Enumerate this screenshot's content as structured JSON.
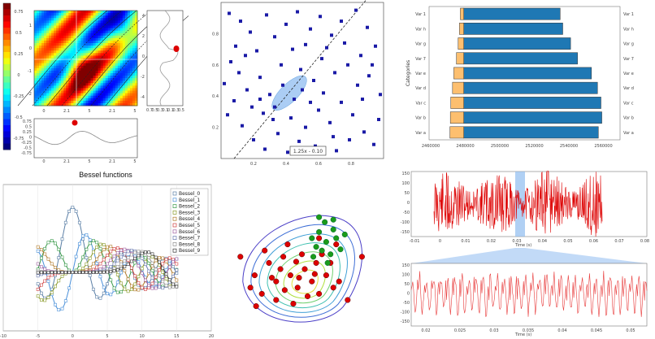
{
  "colors": {
    "orange": "#fdbf6f",
    "blue": "#1f78b4",
    "navy": "#1a1aa6",
    "red": "#dd0000",
    "green": "#1a9b1a",
    "selection": "#8fbcf0"
  },
  "chart_data": [
    {
      "id": "contour",
      "type": "heatmap",
      "colorbar_ticks": [
        "0.75",
        "0.5",
        "0.25",
        "0",
        "-0.25",
        "-0.5",
        "-0.75"
      ],
      "x_ticks": [
        "0",
        "2.1",
        "5",
        "2.1",
        "5"
      ],
      "y_ticks": [
        "1",
        "0",
        "-1",
        "-2"
      ],
      "right_profile_yticks": [
        "4",
        "2",
        "0",
        "-2",
        "-4"
      ],
      "right_profile_xticks": [
        "0.7",
        "0.5",
        "0.3",
        "0.1",
        "0.1",
        "0.3",
        "0.5"
      ],
      "bottom_profile_yticks": [
        "0.75",
        "0.5",
        "0.25",
        "0",
        "-0.25",
        "-0.5",
        "-0.75"
      ],
      "bottom_profile_xticks": [
        "0",
        "2.1",
        "5",
        "2.1",
        "5"
      ]
    },
    {
      "id": "scatter-fit",
      "type": "scatter",
      "x_ticks": [
        "0.2",
        "0.4",
        "0.6",
        "0.8"
      ],
      "y_ticks": [
        "0.8",
        "0.6",
        "0.4",
        "0.2"
      ],
      "xlim": [
        0,
        1
      ],
      "ylim": [
        0,
        1
      ],
      "fit_label": "1.25x - 0.10",
      "fit_slope": 1.25,
      "fit_intercept": -0.1,
      "points": [
        [
          0.05,
          0.93
        ],
        [
          0.12,
          0.88
        ],
        [
          0.18,
          0.81
        ],
        [
          0.09,
          0.72
        ],
        [
          0.22,
          0.69
        ],
        [
          0.28,
          0.92
        ],
        [
          0.33,
          0.78
        ],
        [
          0.4,
          0.86
        ],
        [
          0.47,
          0.94
        ],
        [
          0.55,
          0.83
        ],
        [
          0.61,
          0.91
        ],
        [
          0.68,
          0.79
        ],
        [
          0.74,
          0.88
        ],
        [
          0.83,
          0.95
        ],
        [
          0.9,
          0.84
        ],
        [
          0.95,
          0.72
        ],
        [
          0.86,
          0.66
        ],
        [
          0.78,
          0.6
        ],
        [
          0.7,
          0.55
        ],
        [
          0.62,
          0.64
        ],
        [
          0.57,
          0.5
        ],
        [
          0.5,
          0.44
        ],
        [
          0.45,
          0.38
        ],
        [
          0.38,
          0.47
        ],
        [
          0.3,
          0.41
        ],
        [
          0.24,
          0.52
        ],
        [
          0.16,
          0.44
        ],
        [
          0.08,
          0.37
        ],
        [
          0.04,
          0.28
        ],
        [
          0.13,
          0.21
        ],
        [
          0.2,
          0.12
        ],
        [
          0.27,
          0.06
        ],
        [
          0.35,
          0.16
        ],
        [
          0.43,
          0.26
        ],
        [
          0.52,
          0.2
        ],
        [
          0.6,
          0.31
        ],
        [
          0.67,
          0.23
        ],
        [
          0.74,
          0.36
        ],
        [
          0.81,
          0.28
        ],
        [
          0.88,
          0.17
        ],
        [
          0.94,
          0.09
        ],
        [
          0.98,
          0.41
        ],
        [
          0.91,
          0.53
        ],
        [
          0.79,
          0.12
        ],
        [
          0.71,
          0.05
        ],
        [
          0.58,
          0.08
        ],
        [
          0.48,
          0.11
        ],
        [
          0.41,
          0.04
        ],
        [
          0.33,
          0.33
        ],
        [
          0.26,
          0.29
        ],
        [
          0.19,
          0.33
        ],
        [
          0.11,
          0.55
        ],
        [
          0.06,
          0.62
        ],
        [
          0.15,
          0.66
        ],
        [
          0.37,
          0.6
        ],
        [
          0.44,
          0.7
        ],
        [
          0.52,
          0.73
        ],
        [
          0.65,
          0.71
        ],
        [
          0.76,
          0.74
        ],
        [
          0.84,
          0.47
        ],
        [
          0.93,
          0.6
        ],
        [
          0.97,
          0.25
        ],
        [
          0.63,
          0.42
        ],
        [
          0.55,
          0.36
        ],
        [
          0.32,
          0.25
        ],
        [
          0.24,
          0.38
        ],
        [
          0.02,
          0.48
        ],
        [
          0.87,
          0.38
        ],
        [
          0.69,
          0.14
        ],
        [
          0.49,
          0.57
        ]
      ]
    },
    {
      "id": "pyramid",
      "type": "bar",
      "ylabel": "Categories",
      "categories": [
        "Var a",
        "Var b",
        "Var c",
        "Var d",
        "Var e",
        "Var 7",
        "Var g",
        "Var h",
        "Var 1"
      ],
      "left_values": [
        2484000,
        2484500,
        2485000,
        2487000,
        2488500,
        2491500,
        2493500,
        2495000,
        2496000
      ],
      "right_values": [
        2655000,
        2659000,
        2658000,
        2654000,
        2647000,
        2631000,
        2623000,
        2614000,
        2611000
      ],
      "baseline": 2500000,
      "xlim": [
        2460000,
        2680000
      ],
      "x_ticks": [
        "2460000",
        "2480000",
        "2500000",
        "2520000",
        "2540000",
        "2560000"
      ],
      "left_labels": [
        "Var a",
        "Var b",
        "Var c",
        "Var d",
        "Var e",
        "Var 7",
        "Var g",
        "Var h",
        "Var 1"
      ],
      "right_labels": [
        "Var a",
        "Var b",
        "Var c",
        "Var d",
        "Var e",
        "Var 7",
        "Var g",
        "Var h",
        "Var 1"
      ]
    },
    {
      "id": "bessel",
      "type": "line",
      "title": "Bessel functions",
      "xlim": [
        -10,
        20
      ],
      "x_ticks": [
        "-10",
        "-5",
        "0",
        "5",
        "10",
        "15",
        "20"
      ],
      "series": [
        "Bessel_0",
        "Bessel_1",
        "Bessel_2",
        "Bessel_3",
        "Bessel_4",
        "Bessel_5",
        "Bessel_6",
        "Bessel_7",
        "Bessel_8",
        "Bessel_9"
      ],
      "series_colors": [
        "#5b7fa6",
        "#4a90d9",
        "#3a9a4a",
        "#8a9a2a",
        "#b07a2a",
        "#d04040",
        "#a060a0",
        "#6a7ab0",
        "#909090",
        "#333333"
      ]
    },
    {
      "id": "density",
      "type": "scatter",
      "red_points": [
        [
          0.2,
          0.3
        ],
        [
          0.3,
          0.4
        ],
        [
          0.25,
          0.55
        ],
        [
          0.35,
          0.6
        ],
        [
          0.4,
          0.45
        ],
        [
          0.45,
          0.35
        ],
        [
          0.5,
          0.5
        ],
        [
          0.55,
          0.4
        ],
        [
          0.6,
          0.3
        ],
        [
          0.38,
          0.7
        ],
        [
          0.48,
          0.62
        ],
        [
          0.58,
          0.55
        ],
        [
          0.65,
          0.45
        ],
        [
          0.3,
          0.25
        ],
        [
          0.42,
          0.22
        ],
        [
          0.52,
          0.28
        ],
        [
          0.62,
          0.62
        ],
        [
          0.7,
          0.35
        ],
        [
          0.15,
          0.45
        ],
        [
          0.22,
          0.65
        ],
        [
          0.33,
          0.5
        ],
        [
          0.44,
          0.56
        ],
        [
          0.36,
          0.33
        ],
        [
          0.27,
          0.43
        ],
        [
          0.57,
          0.46
        ],
        [
          0.46,
          0.43
        ],
        [
          0.68,
          0.55
        ],
        [
          0.74,
          0.4
        ],
        [
          0.12,
          0.35
        ],
        [
          0.05,
          0.6
        ],
        [
          0.9,
          0.6
        ],
        [
          0.16,
          0.2
        ],
        [
          0.8,
          0.25
        ],
        [
          0.72,
          0.7
        ],
        [
          0.6,
          0.75
        ]
      ],
      "green_points": [
        [
          0.55,
          0.75
        ],
        [
          0.6,
          0.8
        ],
        [
          0.65,
          0.72
        ],
        [
          0.7,
          0.82
        ],
        [
          0.62,
          0.65
        ],
        [
          0.68,
          0.62
        ],
        [
          0.58,
          0.68
        ],
        [
          0.72,
          0.75
        ],
        [
          0.64,
          0.88
        ],
        [
          0.75,
          0.66
        ],
        [
          0.66,
          0.55
        ],
        [
          0.56,
          0.6
        ],
        [
          0.7,
          0.9
        ],
        [
          0.6,
          0.92
        ],
        [
          0.78,
          0.78
        ]
      ]
    },
    {
      "id": "signal-zoom",
      "type": "line",
      "top_yticks": [
        "150",
        "100",
        "50",
        "0",
        "-50",
        "-100",
        "-150"
      ],
      "top_xticks": [
        "-0.01",
        "0",
        "0.01",
        "0.02",
        "0.03",
        "0.04",
        "0.05",
        "0.06",
        "0.07",
        "0.08"
      ],
      "top_xlabel": "Time (s)",
      "bottom_yticks": [
        "150",
        "100",
        "50",
        "0",
        "-50",
        "-100",
        "-150"
      ],
      "bottom_xticks": [
        "0.02",
        "0.025",
        "0.03",
        "0.035",
        "0.04",
        "0.045",
        "0.05"
      ],
      "bottom_xlabel": "Time (s)"
    }
  ]
}
